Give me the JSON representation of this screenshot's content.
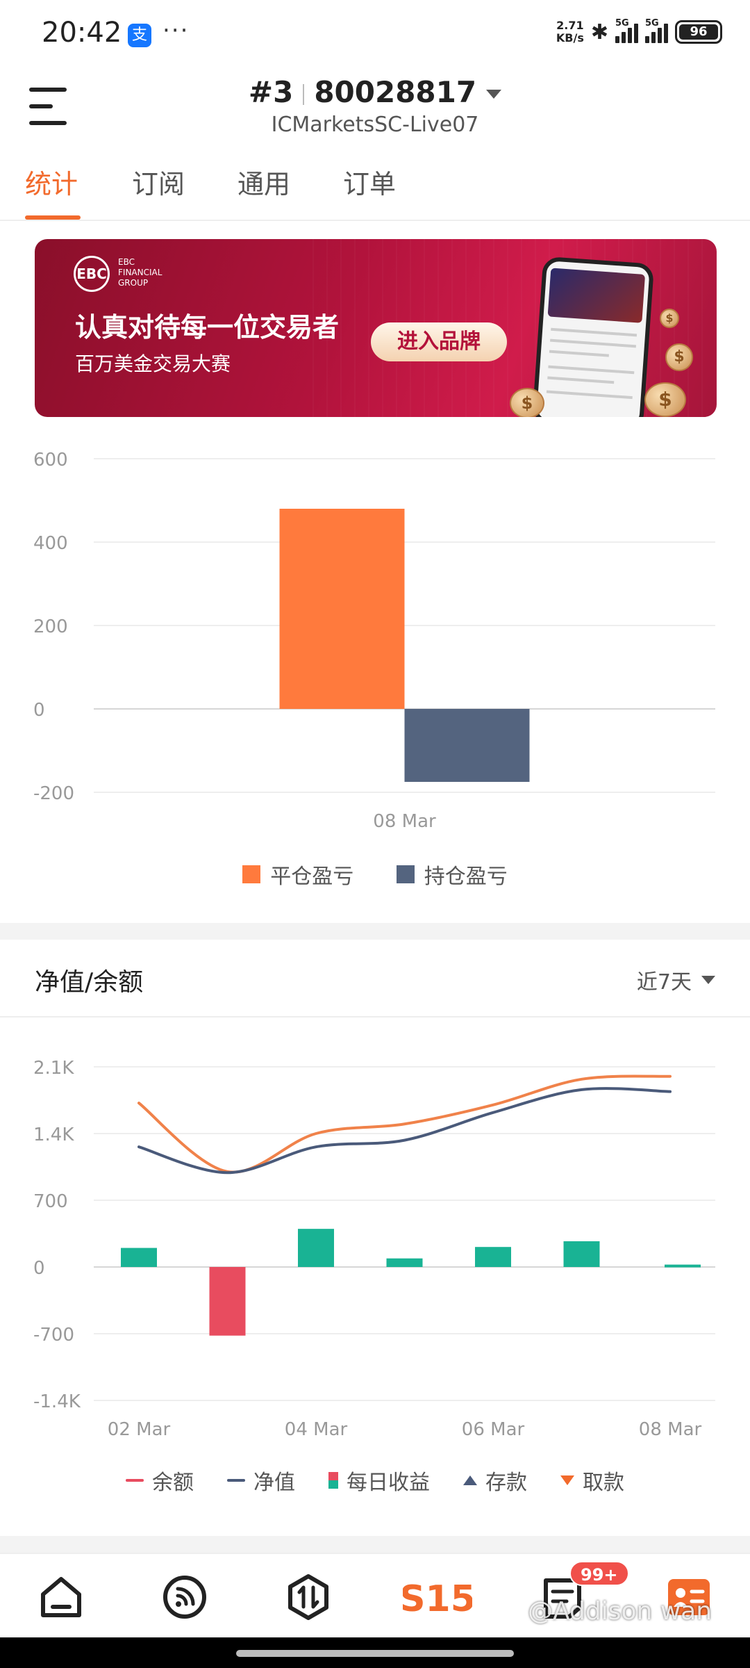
{
  "status_bar": {
    "time": "20:42",
    "app_icon": "alipay-icon",
    "more": "···",
    "net_speed_value": "2.71",
    "net_speed_unit": "KB/s",
    "signal1_label": "5G",
    "signal2_label": "5G",
    "battery": "96"
  },
  "header": {
    "account_index": "#3",
    "account_number": "80028817",
    "server": "ICMarketsSC-Live07"
  },
  "tabs": [
    {
      "label": "统计",
      "active": true
    },
    {
      "label": "订阅",
      "active": false
    },
    {
      "label": "通用",
      "active": false
    },
    {
      "label": "订单",
      "active": false
    }
  ],
  "banner": {
    "logo": "EBC",
    "logo_sub": [
      "EBC",
      "FINANCIAL",
      "GROUP"
    ],
    "headline": "认真对待每一位交易者",
    "subline": "百万美金交易大赛",
    "button": "进入品牌",
    "colors": {
      "bg": "#b2133c",
      "button_text": "#b3123a"
    }
  },
  "pnl_chart": {
    "legend": [
      {
        "label": "平仓盈亏",
        "color": "#ff7a3d"
      },
      {
        "label": "持仓盈亏",
        "color": "#54647f"
      }
    ]
  },
  "equity_section": {
    "title": "净值/余额",
    "range": "近7天",
    "legend": [
      {
        "label": "余额",
        "icon": "line",
        "color": "#e84c5f"
      },
      {
        "label": "净值",
        "icon": "line",
        "color": "#4a5a7a"
      },
      {
        "label": "每日收益",
        "icon": "bar",
        "color": "#19b394"
      },
      {
        "label": "存款",
        "icon": "triangle-up",
        "color": "#4a5a7a"
      },
      {
        "label": "取款",
        "icon": "triangle-down",
        "color": "#f26a2c"
      }
    ]
  },
  "bottom_nav": {
    "items": [
      "home-icon",
      "signal-feed-icon",
      "trade-icon",
      "s15-logo-icon",
      "news-icon",
      "profile-card-icon"
    ],
    "s15_label": "S15",
    "badge": "99+"
  },
  "watermark": "@Addison wan",
  "chart_data": [
    {
      "type": "bar",
      "categories": [
        "08 Mar"
      ],
      "series": [
        {
          "name": "平仓盈亏",
          "values": [
            480
          ],
          "color": "#ff7a3d"
        },
        {
          "name": "持仓盈亏",
          "values": [
            -175
          ],
          "color": "#54647f"
        }
      ],
      "ylim": [
        -200,
        600
      ],
      "yticks": [
        600,
        400,
        200,
        0,
        -200
      ],
      "grid": true,
      "legend_position": "bottom"
    },
    {
      "type": "line",
      "x": [
        "02 Mar",
        "03 Mar",
        "04 Mar",
        "05 Mar",
        "06 Mar",
        "07 Mar",
        "08 Mar"
      ],
      "xtick_labels": [
        "02 Mar",
        "04 Mar",
        "06 Mar",
        "08 Mar"
      ],
      "series": [
        {
          "name": "余额",
          "type": "line",
          "values": [
            1720,
            1000,
            1400,
            1500,
            1700,
            1970,
            2000
          ],
          "color": "#f0824a"
        },
        {
          "name": "净值",
          "type": "line",
          "values": [
            1260,
            990,
            1260,
            1330,
            1620,
            1860,
            1840
          ],
          "color": "#4a5a7a"
        },
        {
          "name": "每日收益",
          "type": "bar",
          "values": [
            200,
            -720,
            400,
            90,
            210,
            270,
            25
          ],
          "color_pos": "#19b394",
          "color_neg": "#e84c5f"
        }
      ],
      "ylim": [
        -1400,
        2100
      ],
      "yticks": [
        "2.1K",
        "1.4K",
        "700",
        "0",
        "-700",
        "-1.4K"
      ],
      "ytick_values": [
        2100,
        1400,
        700,
        0,
        -700,
        -1400
      ],
      "grid": true,
      "legend_position": "bottom"
    }
  ]
}
